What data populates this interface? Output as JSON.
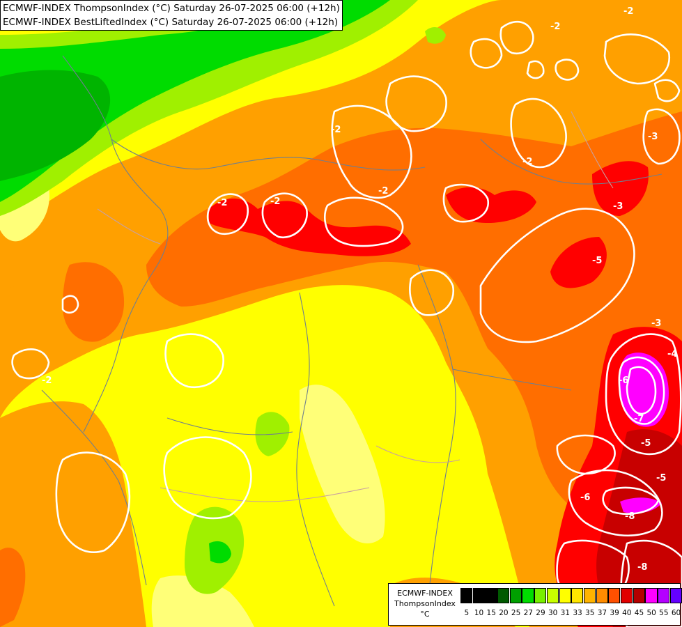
{
  "titles": [
    "ECMWF-INDEX ThompsonIndex (°C) Saturday 26-07-2025 06:00 (+12h)",
    "ECMWF-INDEX BestLiftedIndex (°C) Saturday 26-07-2025 06:00 (+12h)"
  ],
  "legend": {
    "model": "ECMWF-INDEX",
    "parameter": "ThompsonIndex",
    "unit": "°C",
    "ticks": [
      "5",
      "10",
      "15",
      "20",
      "25",
      "27",
      "29",
      "30",
      "31",
      "33",
      "35",
      "37",
      "39",
      "40",
      "45",
      "50",
      "55",
      "60"
    ],
    "colors": [
      "#000000",
      "#000000",
      "#000000",
      "#005a00",
      "#00a000",
      "#00dc00",
      "#78f000",
      "#c8ff00",
      "#ffff00",
      "#ffe600",
      "#ffb400",
      "#ff8c00",
      "#ff5000",
      "#e10000",
      "#b40000",
      "#ff00ff",
      "#b400ff",
      "#6400ff",
      "#0000ff"
    ]
  },
  "contour_labels": [
    "-2",
    "-2",
    "-2",
    "-2",
    "-2",
    "-2",
    "-2",
    "-2",
    "-3",
    "-3",
    "-3",
    "-4",
    "-5",
    "-5",
    "-5",
    "-6",
    "-6",
    "-7",
    "-8",
    "-8"
  ],
  "field_colors": {
    "dark_green": "#00b400",
    "green": "#00dc00",
    "lime": "#a0f000",
    "yellow": "#ffff00",
    "light_yellow": "#ffff78",
    "gold": "#ffd200",
    "orange": "#ffa000",
    "dark_orange": "#ff6e00",
    "red_orange": "#ff4600",
    "red": "#ff0000",
    "dark_red": "#c80000",
    "magenta": "#ff00ff"
  }
}
